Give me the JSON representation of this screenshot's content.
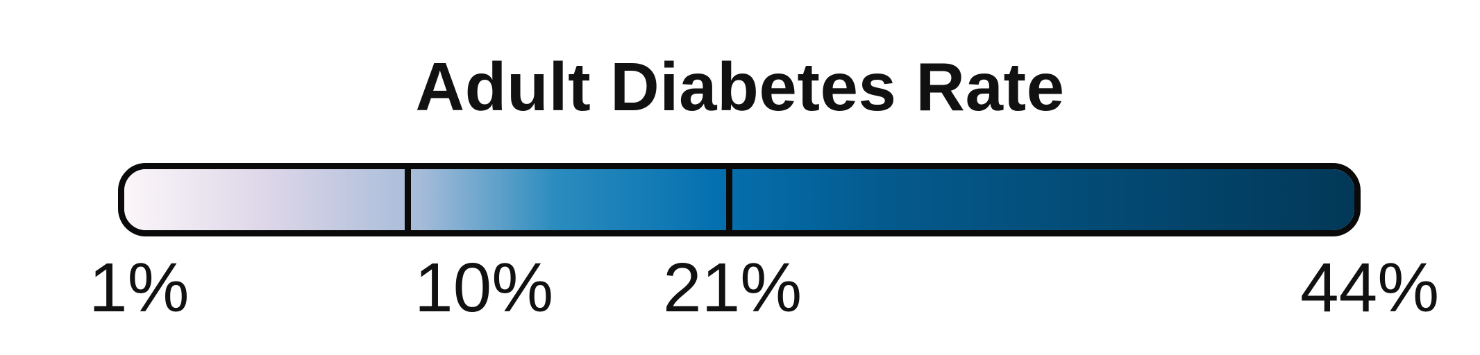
{
  "legend": {
    "title": "Adult Diabetes Rate",
    "ticks": [
      "1%",
      "10%",
      "21%",
      "44%"
    ],
    "breakpoints": [
      1,
      10,
      21,
      44
    ],
    "gradient_colors": [
      "#fbf6f9",
      "#dcd5e8",
      "#a6bcd9",
      "#2b8cbe",
      "#0570b0",
      "#045a8d",
      "#023858"
    ],
    "border_color": "#0a0a0a"
  }
}
